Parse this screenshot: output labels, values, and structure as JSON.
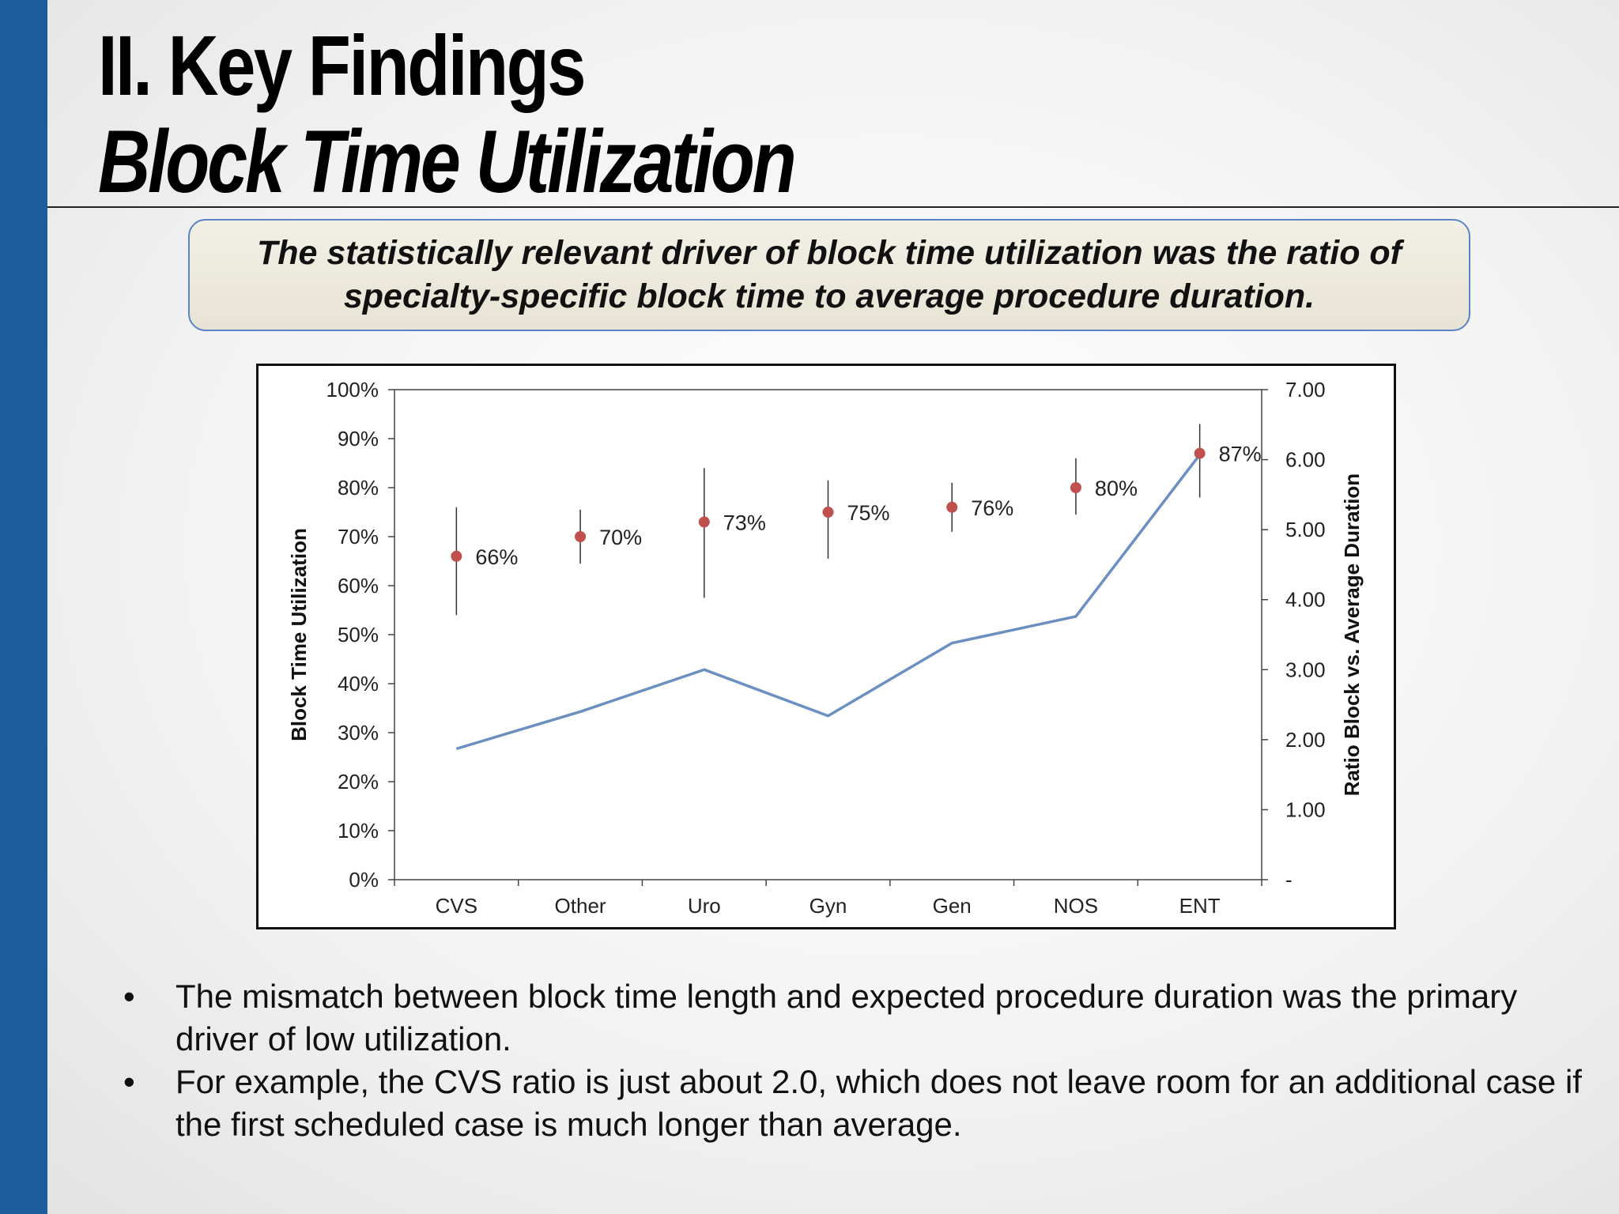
{
  "slide": {
    "title_line1": "II.  Key Findings",
    "title_line2": "Block Time Utilization",
    "callout": "The statistically relevant driver of block time utilization was the ratio of specialty-specific block time to average procedure duration.",
    "bullets": [
      "The mismatch between block time length and expected procedure duration was the primary driver of low utilization.",
      "For example, the CVS ratio is just about 2.0, which does not leave room for an additional case if the first scheduled case is much longer than average."
    ],
    "bullet_glyph": "•",
    "colors": {
      "sidebar": "#1b5d9c",
      "callout_border": "#5b84c4",
      "marker": "#c0504d",
      "line": "#6a8fc0"
    }
  },
  "chart_data": {
    "type": "scatter+line",
    "categories": [
      "CVS",
      "Other",
      "Uro",
      "Gyn",
      "Gen",
      "NOS",
      "ENT"
    ],
    "ylabel": "Block Time Utilization",
    "y2label": "Ratio Block vs. Average Duration",
    "ylim": [
      0,
      1
    ],
    "y2lim": [
      0,
      7
    ],
    "y_ticks": [
      "0%",
      "10%",
      "20%",
      "30%",
      "40%",
      "50%",
      "60%",
      "70%",
      "80%",
      "90%",
      "100%"
    ],
    "y2_ticks": [
      "-",
      "1.00",
      "2.00",
      "3.00",
      "4.00",
      "5.00",
      "6.00",
      "7.00"
    ],
    "series": [
      {
        "kind": "points-with-error-bars",
        "axis": "left",
        "values": [
          0.66,
          0.7,
          0.73,
          0.75,
          0.76,
          0.8,
          0.87
        ],
        "labels": [
          "66%",
          "70%",
          "73%",
          "75%",
          "76%",
          "80%",
          "87%"
        ],
        "err_low": [
          0.54,
          0.645,
          0.575,
          0.655,
          0.71,
          0.745,
          0.78
        ],
        "err_high": [
          0.76,
          0.755,
          0.84,
          0.815,
          0.81,
          0.86,
          0.93
        ]
      },
      {
        "kind": "line",
        "axis": "right",
        "values": [
          1.87,
          2.4,
          3.0,
          2.34,
          3.38,
          3.76,
          6.07
        ]
      }
    ],
    "legend": "none",
    "grid": false
  }
}
